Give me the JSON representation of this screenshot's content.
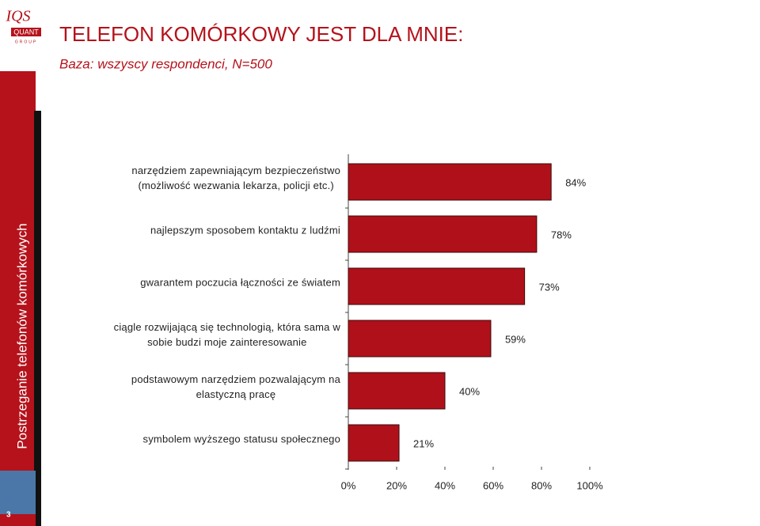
{
  "logo": {
    "top": "IQS",
    "bottom": "QUANT",
    "small": "GROUP"
  },
  "sidebar_title": "Postrzeganie telefonów komórkowych",
  "page_number": "3",
  "chart_data": {
    "type": "hbar",
    "title": "TELEFON KOMÓRKOWY JEST DLA MNIE:",
    "subtitle": "Baza: wszyscy respondenci, N=500",
    "categories": [
      "narzędziem zapewniającym bezpieczeństwo\n(możliwość wezwania lekarza, policji etc.)",
      "najlepszym sposobem kontaktu z ludźmi",
      "gwarantem poczucia łączności ze światem",
      "ciągle rozwijającą się technologią, która sama w\nsobie budzi moje zainteresowanie",
      "podstawowym narzędziem pozwalającym na\nelastyczną pracę",
      "symbolem wyższego statusu społecznego"
    ],
    "values": [
      84,
      78,
      73,
      59,
      40,
      21
    ],
    "value_labels": [
      "84%",
      "78%",
      "73%",
      "59%",
      "40%",
      "21%"
    ],
    "color": "#b0101a",
    "xlim": [
      0,
      100
    ],
    "xticks": [
      {
        "value": 0,
        "label": "0%"
      },
      {
        "value": 20,
        "label": "20%"
      },
      {
        "value": 40,
        "label": "40%"
      },
      {
        "value": 60,
        "label": "60%"
      },
      {
        "value": 80,
        "label": "80%"
      },
      {
        "value": 100,
        "label": "100%"
      }
    ]
  }
}
